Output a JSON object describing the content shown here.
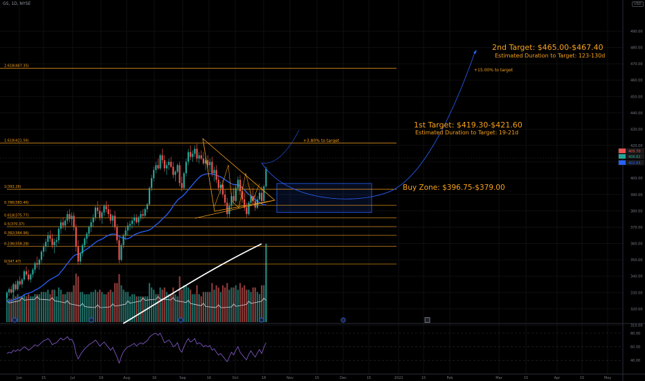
{
  "header": {
    "symbol": "GS, 1D, NYSE",
    "currency": "USD"
  },
  "annotations": {
    "t2_title": "2nd Target: $465.00-$467.40",
    "t2_sub": "Estimated Duration to Target: 123-130d",
    "t2_pct": "+15.00% to target",
    "t1_title": "1st Target: $419.30-$421.60",
    "t1_sub": "Estimated Duration to Target: 19-21d",
    "t1_pct": "+3.80% to target",
    "buy_zone": "Buy Zone: $396.75-$379.00"
  },
  "colors": {
    "up": "#26a69a",
    "down": "#ef5350",
    "fib": "#f7a21b",
    "ma_blue": "#2962ff",
    "ma_white": "#ffffff",
    "rsi": "#7e57c2",
    "zone_border": "#2962ff"
  },
  "chart_data": {
    "type": "candlestick",
    "price_axis": {
      "ticks": [
        310,
        320,
        330,
        340,
        350,
        360,
        370,
        380,
        390,
        400,
        410,
        420,
        430,
        440,
        450,
        460,
        470,
        480,
        490
      ]
    },
    "time_axis": {
      "labels": [
        "Jun",
        "15",
        "Jul",
        "19",
        "Aug",
        "16",
        "Sep",
        "16",
        "Oct",
        "18",
        "Nov",
        "15",
        "Dec",
        "15",
        "2022",
        "15",
        "Feb",
        "Mar",
        "15",
        "Apr",
        "15",
        "May"
      ]
    },
    "fib_levels": [
      {
        "label": "2.618(467.35)",
        "value": 467.35
      },
      {
        "label": "1.618(421.56)",
        "value": 421.56
      },
      {
        "label": "1(393.26)",
        "value": 393.26
      },
      {
        "label": "0.786(383.46)",
        "value": 383.46
      },
      {
        "label": "0.618(375.77)",
        "value": 375.77
      },
      {
        "label": "0.5(370.37)",
        "value": 370.37
      },
      {
        "label": "0.382(364.96)",
        "value": 364.96
      },
      {
        "label": "0.236(358.28)",
        "value": 358.28
      },
      {
        "label": "0(347.47)",
        "value": 347.47
      }
    ],
    "price_labels": [
      "405.70",
      "406.61",
      "402.65"
    ],
    "buy_zone": [
      379.0,
      396.75
    ],
    "targets": {
      "first": [
        419.3,
        421.6
      ],
      "second": [
        465.0,
        467.4
      ]
    },
    "candles": [
      [
        327,
        331,
        325,
        330
      ],
      [
        330,
        333,
        328,
        332
      ],
      [
        332,
        334,
        329,
        330
      ],
      [
        330,
        336,
        329,
        335
      ],
      [
        335,
        337,
        331,
        332
      ],
      [
        332,
        338,
        331,
        337
      ],
      [
        337,
        340,
        334,
        335
      ],
      [
        335,
        339,
        333,
        338
      ],
      [
        338,
        344,
        337,
        343
      ],
      [
        343,
        346,
        340,
        341
      ],
      [
        341,
        344,
        337,
        338
      ],
      [
        338,
        342,
        336,
        341
      ],
      [
        341,
        345,
        339,
        344
      ],
      [
        344,
        349,
        342,
        348
      ],
      [
        348,
        352,
        345,
        347
      ],
      [
        347,
        351,
        344,
        350
      ],
      [
        350,
        356,
        348,
        355
      ],
      [
        355,
        360,
        352,
        358
      ],
      [
        358,
        363,
        355,
        361
      ],
      [
        361,
        367,
        358,
        365
      ],
      [
        365,
        368,
        361,
        363
      ],
      [
        363,
        366,
        357,
        359
      ],
      [
        359,
        363,
        354,
        361
      ],
      [
        361,
        364,
        358,
        362
      ],
      [
        362,
        370,
        360,
        369
      ],
      [
        369,
        375,
        366,
        373
      ],
      [
        373,
        376,
        369,
        371
      ],
      [
        371,
        375,
        368,
        374
      ],
      [
        374,
        380,
        372,
        378
      ],
      [
        378,
        381,
        373,
        375
      ],
      [
        375,
        379,
        371,
        377
      ],
      [
        377,
        379,
        368,
        370
      ],
      [
        370,
        372,
        355,
        358
      ],
      [
        358,
        362,
        347,
        349
      ],
      [
        349,
        355,
        347,
        354
      ],
      [
        354,
        360,
        352,
        359
      ],
      [
        359,
        364,
        357,
        363
      ],
      [
        363,
        367,
        360,
        366
      ],
      [
        366,
        371,
        364,
        370
      ],
      [
        370,
        375,
        367,
        373
      ],
      [
        373,
        378,
        370,
        376
      ],
      [
        376,
        383,
        374,
        382
      ],
      [
        382,
        386,
        378,
        380
      ],
      [
        380,
        383,
        374,
        376
      ],
      [
        376,
        380,
        372,
        379
      ],
      [
        379,
        384,
        377,
        383
      ],
      [
        383,
        386,
        379,
        381
      ],
      [
        381,
        384,
        376,
        378
      ],
      [
        378,
        381,
        372,
        374
      ],
      [
        374,
        378,
        370,
        377
      ],
      [
        377,
        380,
        368,
        370
      ],
      [
        370,
        372,
        360,
        362
      ],
      [
        362,
        364,
        348,
        350
      ],
      [
        350,
        360,
        349,
        359
      ],
      [
        359,
        366,
        357,
        365
      ],
      [
        365,
        370,
        362,
        368
      ],
      [
        368,
        373,
        365,
        371
      ],
      [
        371,
        374,
        368,
        372
      ],
      [
        372,
        376,
        369,
        374
      ],
      [
        374,
        378,
        371,
        376
      ],
      [
        376,
        378,
        372,
        373
      ],
      [
        373,
        377,
        371,
        376
      ],
      [
        376,
        380,
        374,
        378
      ],
      [
        378,
        381,
        375,
        377
      ],
      [
        377,
        382,
        376,
        381
      ],
      [
        381,
        385,
        379,
        384
      ],
      [
        384,
        395,
        383,
        394
      ],
      [
        394,
        402,
        392,
        400
      ],
      [
        400,
        407,
        398,
        405
      ],
      [
        405,
        410,
        403,
        408
      ],
      [
        408,
        412,
        405,
        406
      ],
      [
        406,
        415,
        405,
        414
      ],
      [
        414,
        418,
        409,
        411
      ],
      [
        411,
        414,
        404,
        406
      ],
      [
        406,
        410,
        402,
        408
      ],
      [
        408,
        412,
        405,
        410
      ],
      [
        410,
        413,
        406,
        407
      ],
      [
        407,
        410,
        400,
        402
      ],
      [
        402,
        405,
        398,
        404
      ],
      [
        404,
        409,
        403,
        408
      ],
      [
        408,
        410,
        395,
        397
      ],
      [
        397,
        401,
        392,
        394
      ],
      [
        394,
        404,
        393,
        403
      ],
      [
        403,
        412,
        401,
        410
      ],
      [
        410,
        418,
        408,
        416
      ],
      [
        416,
        420,
        411,
        413
      ],
      [
        413,
        417,
        410,
        415
      ],
      [
        415,
        420,
        413,
        418
      ],
      [
        418,
        421,
        410,
        412
      ],
      [
        412,
        416,
        409,
        414
      ],
      [
        414,
        417,
        411,
        412
      ],
      [
        412,
        416,
        408,
        409
      ],
      [
        409,
        413,
        405,
        411
      ],
      [
        411,
        414,
        406,
        408
      ],
      [
        408,
        412,
        404,
        410
      ],
      [
        410,
        413,
        401,
        403
      ],
      [
        403,
        407,
        398,
        405
      ],
      [
        405,
        408,
        397,
        399
      ],
      [
        399,
        402,
        392,
        394
      ],
      [
        394,
        398,
        390,
        396
      ],
      [
        396,
        399,
        388,
        390
      ],
      [
        390,
        393,
        383,
        385
      ],
      [
        385,
        388,
        376,
        378
      ],
      [
        378,
        385,
        376,
        383
      ],
      [
        383,
        391,
        381,
        389
      ],
      [
        389,
        394,
        384,
        386
      ],
      [
        386,
        396,
        385,
        394
      ],
      [
        394,
        401,
        392,
        399
      ],
      [
        399,
        402,
        390,
        392
      ],
      [
        392,
        395,
        385,
        387
      ],
      [
        387,
        391,
        380,
        382
      ],
      [
        382,
        385,
        376,
        378
      ],
      [
        378,
        386,
        377,
        385
      ],
      [
        385,
        391,
        383,
        389
      ],
      [
        389,
        394,
        384,
        386
      ],
      [
        386,
        390,
        380,
        382
      ],
      [
        382,
        389,
        381,
        387
      ],
      [
        387,
        393,
        386,
        391
      ],
      [
        391,
        395,
        384,
        386
      ],
      [
        386,
        396,
        385,
        395
      ],
      [
        395,
        407,
        394,
        405.7
      ]
    ],
    "rsi_axis": {
      "ticks": [
        40,
        60,
        80
      ]
    },
    "rsi_values": [
      50,
      52,
      51,
      55,
      53,
      56,
      54,
      57,
      60,
      58,
      55,
      57,
      60,
      63,
      61,
      63,
      66,
      69,
      70,
      72,
      69,
      63,
      65,
      66,
      70,
      73,
      70,
      72,
      75,
      70,
      71,
      65,
      50,
      42,
      48,
      53,
      57,
      60,
      63,
      65,
      67,
      70,
      66,
      61,
      64,
      67,
      63,
      59,
      55,
      59,
      52,
      45,
      36,
      46,
      53,
      57,
      60,
      61,
      63,
      65,
      61,
      64,
      66,
      64,
      67,
      69,
      74,
      77,
      79,
      80,
      77,
      80,
      73,
      66,
      68,
      70,
      66,
      60,
      62,
      66,
      56,
      52,
      60,
      67,
      72,
      67,
      69,
      72,
      64,
      66,
      64,
      60,
      62,
      60,
      62,
      55,
      57,
      52,
      48,
      50,
      46,
      42,
      38,
      45,
      52,
      48,
      55,
      60,
      52,
      48,
      44,
      41,
      49,
      54,
      49,
      45,
      51,
      56,
      50,
      59,
      66
    ]
  }
}
